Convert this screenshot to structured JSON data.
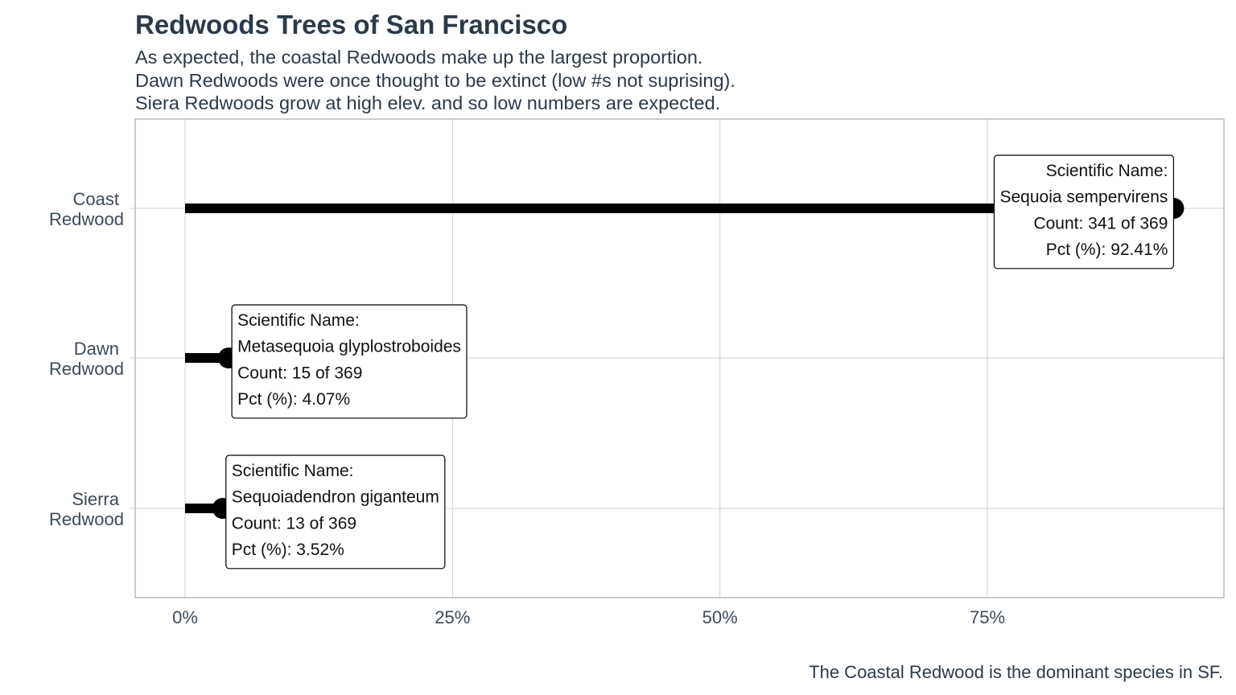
{
  "chart_data": {
    "type": "lollipop",
    "title": "Redwoods Trees of San Francisco",
    "subtitle": [
      "As expected, the coastal Redwoods make up the largest proportion.",
      "Dawn Redwoods were once thought to be extinct (low #s not suprising).",
      "Siera Redwoods grow at high elev. and so low numbers are expected."
    ],
    "caption": "The Coastal Redwood is the dominant species in SF.",
    "xlabel": "",
    "ylabel": "",
    "xlim": [
      0,
      1
    ],
    "x_ticks": [
      "0%",
      "25%",
      "50%",
      "75%"
    ],
    "x_tick_values": [
      0,
      0.25,
      0.5,
      0.75
    ],
    "grid": true,
    "categories": [
      {
        "label": [
          "Coast",
          "Redwood"
        ],
        "value": 0.9241,
        "scientific_name": "Sequoia sempervirens",
        "count": "341 of 369",
        "pct": "92.41%"
      },
      {
        "label": [
          "Dawn",
          "Redwood"
        ],
        "value": 0.0407,
        "scientific_name": "Metasequoia glyplostroboides",
        "count": "15 of 369",
        "pct": "4.07%"
      },
      {
        "label": [
          "Sierra",
          "Redwood"
        ],
        "value": 0.0352,
        "scientific_name": "Sequoiadendron giganteum",
        "count": "13 of 369",
        "pct": "3.52%"
      }
    ],
    "label_prefixes": {
      "name": "Scientific Name:",
      "count": "Count: ",
      "pct": "Pct (%): "
    },
    "colors": {
      "lollipop": "#000000",
      "grid": "#d4d4d4",
      "panel_border": "#9a9a9a",
      "text": "#2b3a4a"
    }
  }
}
